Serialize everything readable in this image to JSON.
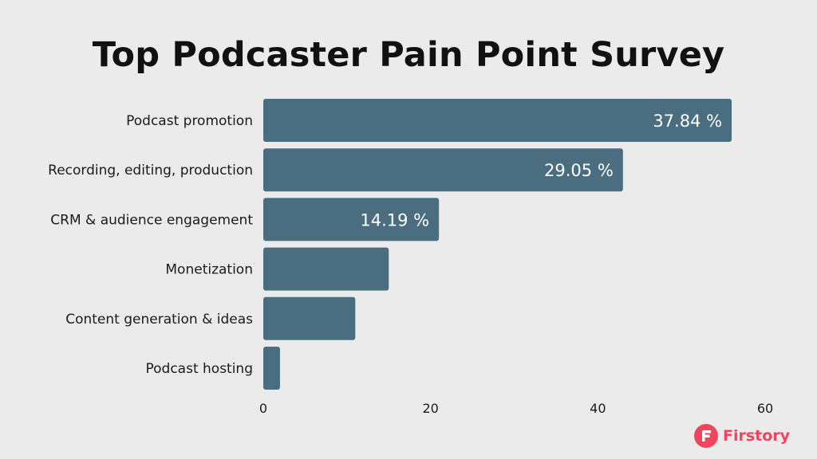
{
  "chart_data": {
    "type": "bar",
    "orientation": "horizontal",
    "title": "Top Podcaster Pain Point Survey",
    "categories": [
      "Podcast promotion",
      "Recording, editing, production",
      "CRM & audience engagement",
      "Monetization",
      "Content generation & ideas",
      "Podcast hosting"
    ],
    "values": [
      56,
      43,
      21,
      15,
      11,
      2
    ],
    "data_labels": [
      "37.84 %",
      "29.05 %",
      "14.19 %",
      "",
      "",
      ""
    ],
    "xlim": [
      0,
      60
    ],
    "xticks": [
      0,
      20,
      40,
      60
    ],
    "xlabel": "",
    "ylabel": "",
    "grid": false,
    "legend": "none",
    "bar_color": "#4a6e80"
  },
  "brand": {
    "name": "Firstory",
    "icon": "firstory-logo-icon",
    "color": "#f0455f"
  }
}
